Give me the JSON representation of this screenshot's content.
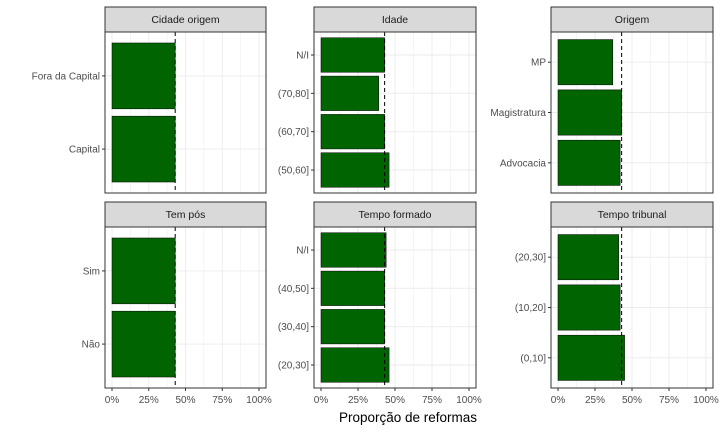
{
  "chart_data": {
    "type": "bar",
    "orientation": "horizontal",
    "xlabel": "Proporção de reformas",
    "xlim": [
      0,
      1
    ],
    "x_ticks": [
      "0%",
      "25%",
      "50%",
      "75%",
      "100%"
    ],
    "x_tick_values": [
      0,
      0.25,
      0.5,
      0.75,
      1
    ],
    "reference_line": 0.43,
    "grid": true,
    "colors": {
      "bar": "#006400",
      "strip": "#d9d9d9",
      "grid": "#ebebeb"
    },
    "panels": [
      {
        "title": "Cidade origem",
        "categories": [
          "Fora da Capital",
          "Capital"
        ],
        "values": [
          0.43,
          0.43
        ]
      },
      {
        "title": "Idade",
        "categories": [
          "N/I",
          "(70,80]",
          "(60,70]",
          "(50,60]"
        ],
        "values": [
          0.43,
          0.39,
          0.43,
          0.46
        ]
      },
      {
        "title": "Origem",
        "categories": [
          "MP",
          "Magistratura",
          "Advocacia"
        ],
        "values": [
          0.37,
          0.43,
          0.42
        ]
      },
      {
        "title": "Tem pós",
        "categories": [
          "Sim",
          "Não"
        ],
        "values": [
          0.43,
          0.43
        ]
      },
      {
        "title": "Tempo formado",
        "categories": [
          "N/I",
          "(40,50]",
          "(30,40]",
          "(20,30]"
        ],
        "values": [
          0.44,
          0.43,
          0.43,
          0.46
        ]
      },
      {
        "title": "Tempo tribunal",
        "categories": [
          "(20,30]",
          "(10,20]",
          "(0,10]"
        ],
        "values": [
          0.41,
          0.42,
          0.45
        ]
      }
    ]
  }
}
